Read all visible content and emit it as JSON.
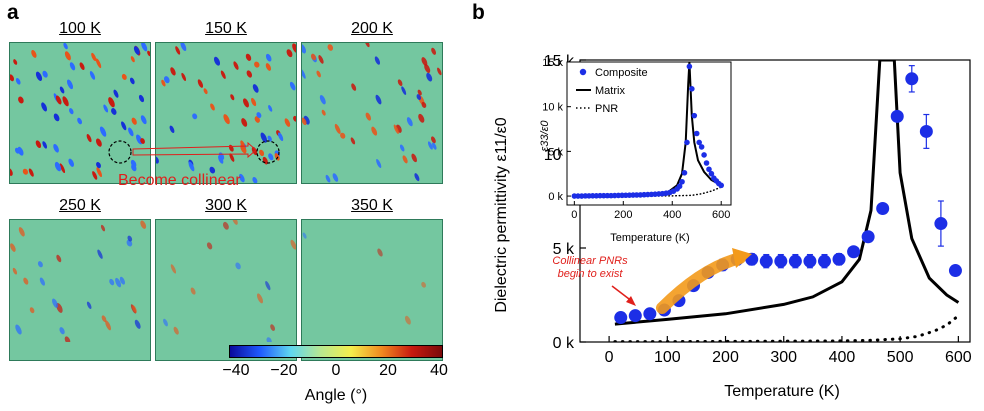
{
  "panel_a": {
    "letter": "a",
    "maps": [
      {
        "label": "100 K",
        "activity": 1.0
      },
      {
        "label": "150 K",
        "activity": 0.95
      },
      {
        "label": "200 K",
        "activity": 0.75
      },
      {
        "label": "250 K",
        "activity": 0.45
      },
      {
        "label": "300 K",
        "activity": 0.22
      },
      {
        "label": "350 K",
        "activity": 0.06
      }
    ],
    "collinear_label": "Become collinear",
    "colorbar": {
      "ticks": [
        "−40",
        "−20",
        "0",
        "20",
        "40"
      ],
      "label": "Angle (°)",
      "colors": [
        "#0a0a9c",
        "#1f5bff",
        "#5fd6f0",
        "#b8e890",
        "#f4ee4c",
        "#f08a20",
        "#c81a10",
        "#7a0a0a"
      ]
    }
  },
  "panel_b": {
    "letter": "b",
    "annotation": [
      "Collinear PNRs",
      "begin to exist"
    ],
    "annotation_color": "#e0201c",
    "arrow_color": "#f39a1b"
  },
  "chart_data": [
    {
      "type": "scatter",
      "xlabel": "Temperature (K)",
      "ylabel": "Dielectric permittivity ε11/ε0",
      "xlim": [
        -50,
        620
      ],
      "ylim": [
        0,
        15000
      ],
      "xticks": [
        0,
        100,
        200,
        300,
        400,
        500,
        600
      ],
      "yticks": [
        0,
        5000,
        10000,
        15000
      ],
      "ytick_labels": [
        "0 k",
        "5 k",
        "10 k",
        "15 k"
      ],
      "series": [
        {
          "name": "Composite",
          "style": "markers",
          "color": "#1c2ee6",
          "x": [
            20,
            45,
            70,
            95,
            120,
            145,
            170,
            195,
            220,
            245,
            270,
            295,
            320,
            345,
            370,
            395,
            420,
            445,
            470,
            495,
            520,
            545,
            570,
            595
          ],
          "y": [
            1300,
            1400,
            1500,
            1700,
            2200,
            3000,
            3700,
            4100,
            4400,
            4400,
            4300,
            4300,
            4300,
            4300,
            4300,
            4400,
            4800,
            5600,
            7100,
            12000,
            14000,
            11200,
            6300,
            3800
          ],
          "yerr": [
            0,
            0,
            0,
            0,
            0,
            0,
            0,
            300,
            300,
            300,
            350,
            350,
            350,
            350,
            350,
            300,
            0,
            0,
            0,
            0,
            700,
            900,
            1200,
            0
          ]
        },
        {
          "name": "Matrix",
          "style": "solid-line",
          "color": "#000000",
          "x": [
            10,
            100,
            200,
            300,
            350,
            400,
            430,
            450,
            465,
            470,
            475,
            480,
            485,
            490,
            500,
            520,
            550,
            580,
            600
          ],
          "y": [
            950,
            1200,
            1500,
            2000,
            2400,
            3200,
            4400,
            7000,
            15000,
            15000,
            15000,
            15000,
            15000,
            15000,
            9000,
            5500,
            3400,
            2500,
            2100
          ]
        },
        {
          "name": "PNR",
          "style": "dotted-line",
          "color": "#000000",
          "x": [
            10,
            100,
            200,
            300,
            400,
            450,
            500,
            530,
            560,
            580,
            600
          ],
          "y": [
            20,
            20,
            30,
            40,
            60,
            90,
            170,
            300,
            600,
            900,
            1400
          ]
        }
      ]
    },
    {
      "type": "scatter",
      "inset": true,
      "xlabel": "Temperature (K)",
      "ylabel": "ε33/ε0",
      "xlim": [
        -30,
        640
      ],
      "ylim": [
        -1000,
        15000
      ],
      "xticks": [
        0,
        200,
        400,
        600
      ],
      "yticks": [
        0,
        5000,
        10000,
        15000
      ],
      "ytick_labels": [
        "0 k",
        "5 k",
        "10 k",
        "15 k"
      ],
      "legend": "top-left",
      "series": [
        {
          "name": "Composite",
          "style": "markers",
          "color": "#1c2ee6",
          "x": [
            0,
            15,
            30,
            45,
            60,
            75,
            90,
            105,
            120,
            135,
            150,
            165,
            180,
            195,
            210,
            225,
            240,
            255,
            270,
            285,
            300,
            315,
            330,
            345,
            360,
            375,
            390,
            405,
            420,
            430,
            440,
            450,
            460,
            470,
            480,
            490,
            500,
            510,
            520,
            530,
            540,
            550,
            560,
            570,
            580,
            590,
            600
          ],
          "y": [
            0,
            0,
            0,
            20,
            20,
            30,
            30,
            40,
            40,
            50,
            50,
            60,
            70,
            80,
            90,
            100,
            110,
            120,
            130,
            150,
            170,
            190,
            210,
            240,
            270,
            320,
            400,
            550,
            800,
            1100,
            1600,
            2600,
            6000,
            14500,
            12000,
            9000,
            7000,
            6000,
            5500,
            4600,
            3700,
            3000,
            2500,
            2000,
            1700,
            1400,
            1200
          ]
        },
        {
          "name": "Matrix",
          "style": "solid-line",
          "color": "#000000",
          "x": [
            0,
            200,
            300,
            380,
            420,
            440,
            455,
            465,
            470,
            475,
            480,
            490,
            505,
            530,
            560,
            600
          ],
          "y": [
            0,
            50,
            120,
            400,
            1200,
            2500,
            6000,
            12500,
            15000,
            12000,
            9000,
            6000,
            4000,
            2700,
            1800,
            1200
          ]
        },
        {
          "name": "PNR",
          "style": "dotted-line",
          "color": "#000000",
          "x": [
            0,
            200,
            400,
            480,
            520,
            560,
            600
          ],
          "y": [
            0,
            0,
            20,
            80,
            250,
            550,
            1000
          ]
        }
      ]
    }
  ]
}
